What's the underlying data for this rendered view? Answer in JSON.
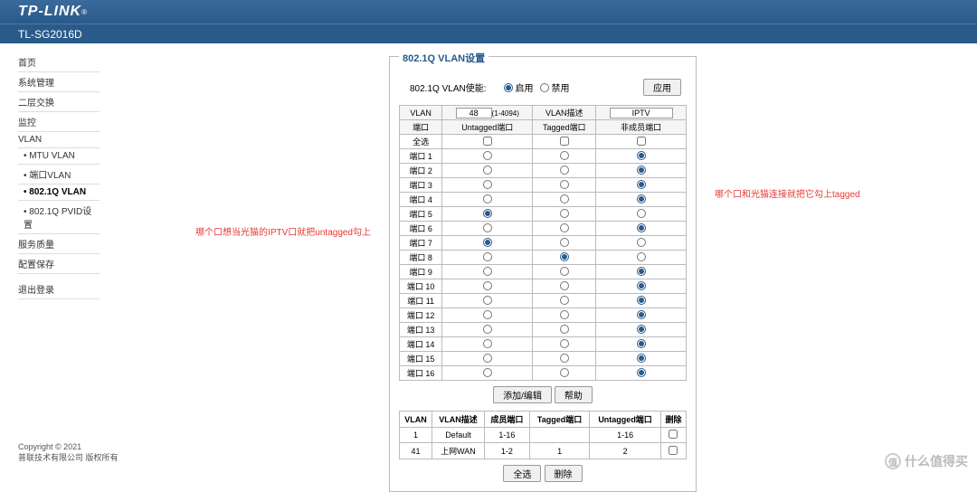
{
  "brand": "TP-LINK",
  "model": "TL-SG2016D",
  "sidebar": {
    "items": [
      {
        "label": "首页",
        "sub": false
      },
      {
        "label": "系统管理",
        "sub": false
      },
      {
        "label": "二层交换",
        "sub": false
      },
      {
        "label": "监控",
        "sub": false
      },
      {
        "label": "VLAN",
        "sub": false
      },
      {
        "label": "MTU VLAN",
        "sub": true
      },
      {
        "label": "端口VLAN",
        "sub": true
      },
      {
        "label": "802.1Q VLAN",
        "sub": true,
        "active": true
      },
      {
        "label": "802.1Q PVID设置",
        "sub": true
      },
      {
        "label": "服务质量",
        "sub": false
      },
      {
        "label": "配置保存",
        "sub": false
      }
    ],
    "logout": "退出登录"
  },
  "panel": {
    "title": "802.1Q VLAN设置",
    "enable_label": "802.1Q VLAN使能:",
    "radio_enable": "启用",
    "radio_disable": "禁用",
    "enable_checked": "enable",
    "apply_btn": "应用",
    "header": {
      "vlan": "VLAN",
      "vlan_id": "48",
      "vlan_range": "(1-4094)",
      "vlan_desc_label": "VLAN描述",
      "vlan_desc": "IPTV",
      "port": "端口",
      "untagged": "Untagged端口",
      "tagged": "Tagged端口",
      "nonmember": "非成员端口",
      "select_all": "全选"
    },
    "ports": [
      {
        "name": "端口 1",
        "sel": "nonmember"
      },
      {
        "name": "端口 2",
        "sel": "nonmember"
      },
      {
        "name": "端口 3",
        "sel": "nonmember"
      },
      {
        "name": "端口 4",
        "sel": "nonmember"
      },
      {
        "name": "端口 5",
        "sel": "untagged"
      },
      {
        "name": "端口 6",
        "sel": "nonmember"
      },
      {
        "name": "端口 7",
        "sel": "untagged"
      },
      {
        "name": "端口 8",
        "sel": "tagged"
      },
      {
        "name": "端口 9",
        "sel": "nonmember"
      },
      {
        "name": "端口 10",
        "sel": "nonmember"
      },
      {
        "name": "端口 11",
        "sel": "nonmember"
      },
      {
        "name": "端口 12",
        "sel": "nonmember"
      },
      {
        "name": "端口 13",
        "sel": "nonmember"
      },
      {
        "name": "端口 14",
        "sel": "nonmember"
      },
      {
        "name": "端口 15",
        "sel": "nonmember"
      },
      {
        "name": "端口 16",
        "sel": "nonmember"
      }
    ],
    "add_btn": "添加/编辑",
    "help_btn": "帮助",
    "summary": {
      "cols": {
        "vlan": "VLAN",
        "desc": "VLAN描述",
        "member": "成员端口",
        "tagged": "Tagged端口",
        "untagged": "Untagged端口",
        "delete": "删除"
      },
      "rows": [
        {
          "vlan": "1",
          "desc": "Default",
          "member": "1-16",
          "tagged": "",
          "untagged": "1-16"
        },
        {
          "vlan": "41",
          "desc": "上网WAN",
          "member": "1-2",
          "tagged": "1",
          "untagged": "2"
        }
      ],
      "select_all_btn": "全选",
      "delete_btn": "删除"
    }
  },
  "annotations": {
    "left": "哪个口想当光猫的IPTV口就把untagged勾上",
    "right": "哪个口和光猫连接就把它勾上tagged"
  },
  "footer": {
    "copyright": "Copyright © 2021",
    "company": "普联技术有限公司 版权所有"
  },
  "watermark": {
    "char": "值",
    "text": "什么值得买"
  },
  "colors": {
    "header_bg": "#2a5a8a",
    "accent": "#2a5a8a",
    "annotation": "#e53935",
    "border": "#bbbbbb"
  }
}
